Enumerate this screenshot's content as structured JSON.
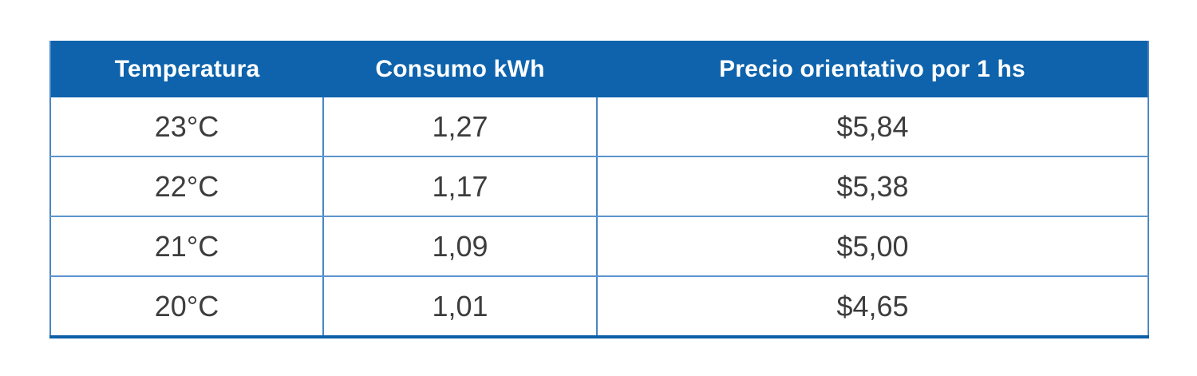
{
  "chart_data": {
    "type": "table",
    "columns": [
      "Temperatura",
      "Consumo kWh",
      "Precio orientativo por 1 hs"
    ],
    "rows": [
      [
        "23°C",
        "1,27",
        "$5,84"
      ],
      [
        "22°C",
        "1,17",
        "$5,38"
      ],
      [
        "21°C",
        "1,09",
        "$5,00"
      ],
      [
        "20°C",
        "1,01",
        "$4,65"
      ]
    ],
    "temperatures_c": [
      23,
      22,
      21,
      20
    ],
    "consumo_kwh": [
      1.27,
      1.17,
      1.09,
      1.01
    ],
    "precio_por_1hs": [
      5.84,
      5.38,
      5.0,
      4.65
    ]
  },
  "table": {
    "headers": [
      "Temperatura",
      "Consumo kWh",
      "Precio orientativo por 1 hs"
    ],
    "rows": [
      [
        "23°C",
        "1,27",
        "$5,84"
      ],
      [
        "22°C",
        "1,17",
        "$5,38"
      ],
      [
        "21°C",
        "1,09",
        "$5,00"
      ],
      [
        "20°C",
        "1,01",
        "$4,65"
      ]
    ]
  },
  "colors": {
    "header_bg": "#0e63ac",
    "header_text": "#ffffff",
    "row_bg": "#ffffff",
    "border_inner": "#4a86c4",
    "border_bottom_outer": "#0d5fa6",
    "cell_text": "#3d3d3d",
    "page_bg": "#ffffff"
  }
}
